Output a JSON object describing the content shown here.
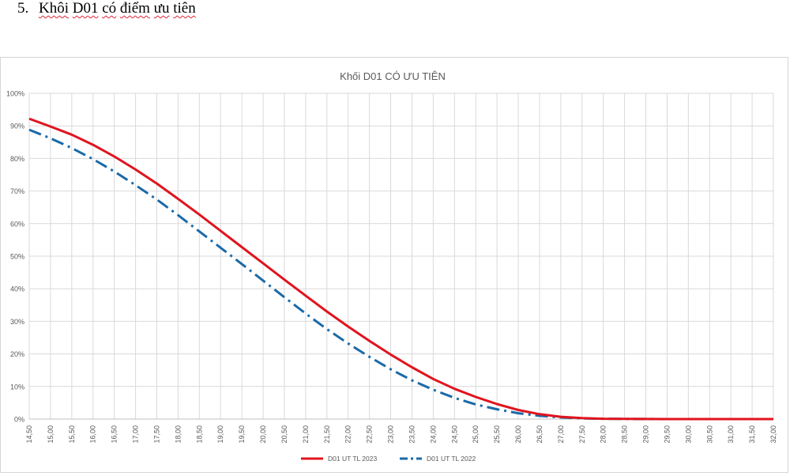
{
  "heading": {
    "number": "5.",
    "words": [
      "Khôi",
      "D01",
      "có",
      "điểm",
      "ưu",
      "tiên"
    ]
  },
  "chart_data": {
    "type": "line",
    "title": "Khối D01 CÓ ƯU TIÊN",
    "xlabel": "",
    "ylabel": "",
    "grid": true,
    "legend_position": "bottom",
    "categories": [
      "14,50",
      "15,00",
      "15,50",
      "16,00",
      "16,50",
      "17,00",
      "17,50",
      "18,00",
      "18,50",
      "19,00",
      "19,50",
      "20,00",
      "20,50",
      "21,00",
      "21,50",
      "22,00",
      "22,50",
      "23,00",
      "23,50",
      "24,00",
      "24,50",
      "25,00",
      "25,50",
      "26,00",
      "26,50",
      "27,00",
      "27,50",
      "28,00",
      "28,50",
      "29,00",
      "29,50",
      "30,00",
      "30,50",
      "31,00",
      "31,50",
      "32,00"
    ],
    "yticks": [
      "0%",
      "10%",
      "20%",
      "30%",
      "40%",
      "50%",
      "60%",
      "70%",
      "80%",
      "90%",
      "100%"
    ],
    "ylim": [
      0,
      100
    ],
    "series": [
      {
        "name": "D01 UT TL 2023",
        "color": "#e0141e",
        "style": "solid",
        "values": [
          92.2,
          89.8,
          87.3,
          84.2,
          80.6,
          76.6,
          72.3,
          67.6,
          62.8,
          57.8,
          52.8,
          47.8,
          42.8,
          37.9,
          33.0,
          28.4,
          24.0,
          19.8,
          15.9,
          12.3,
          9.3,
          6.8,
          4.6,
          2.8,
          1.5,
          0.7,
          0.3,
          0.1,
          0.05,
          0.02,
          0.01,
          0.0,
          0.0,
          0.0,
          0.0,
          0.0
        ]
      },
      {
        "name": "D01 UT TL 2022",
        "color": "#1a6aa8",
        "style": "dashdot",
        "values": [
          88.8,
          86.2,
          83.2,
          79.8,
          76.0,
          71.8,
          67.4,
          62.6,
          57.6,
          52.6,
          47.6,
          42.5,
          37.4,
          32.4,
          27.6,
          23.2,
          19.1,
          15.3,
          11.9,
          9.0,
          6.5,
          4.5,
          3.0,
          1.8,
          1.0,
          0.5,
          0.2,
          0.1,
          0.05,
          0.02,
          0.01,
          0.0,
          0.0,
          0.0,
          0.0,
          0.0
        ]
      }
    ]
  }
}
